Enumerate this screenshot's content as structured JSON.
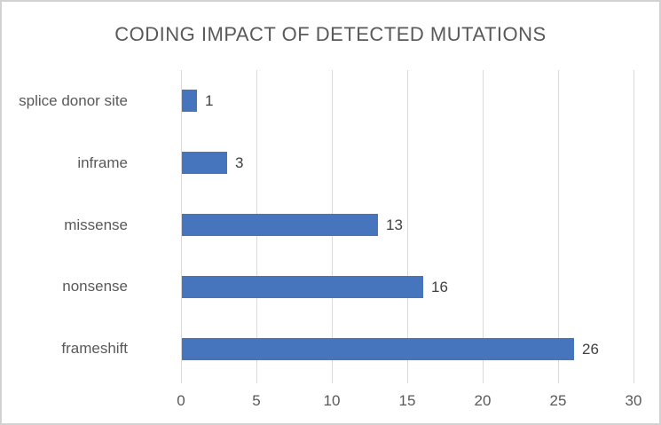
{
  "chart_data": {
    "type": "bar",
    "orientation": "horizontal",
    "title": "CODING IMPACT OF DETECTED MUTATIONS",
    "categories": [
      "splice donor site",
      "inframe",
      "missense",
      "nonsense",
      "frameshift"
    ],
    "values": [
      1,
      3,
      13,
      16,
      26
    ],
    "data_labels": [
      "1",
      "3",
      "13",
      "16",
      "26"
    ],
    "xlabel": "",
    "ylabel": "",
    "xlim": [
      0,
      30
    ],
    "x_ticks": [
      "0",
      "5",
      "10",
      "15",
      "20",
      "25",
      "30"
    ],
    "x_tick_values": [
      0,
      5,
      10,
      15,
      20,
      25,
      30
    ],
    "grid": "vertical-only",
    "legend": "none",
    "colors": {
      "bar": "#4675BD",
      "gridline": "#d9d9d9",
      "title_text": "#595959",
      "axis_text": "#595959",
      "data_label_text": "#404040",
      "canvas_border": "#d2d2d2",
      "background": "#ffffff"
    }
  }
}
